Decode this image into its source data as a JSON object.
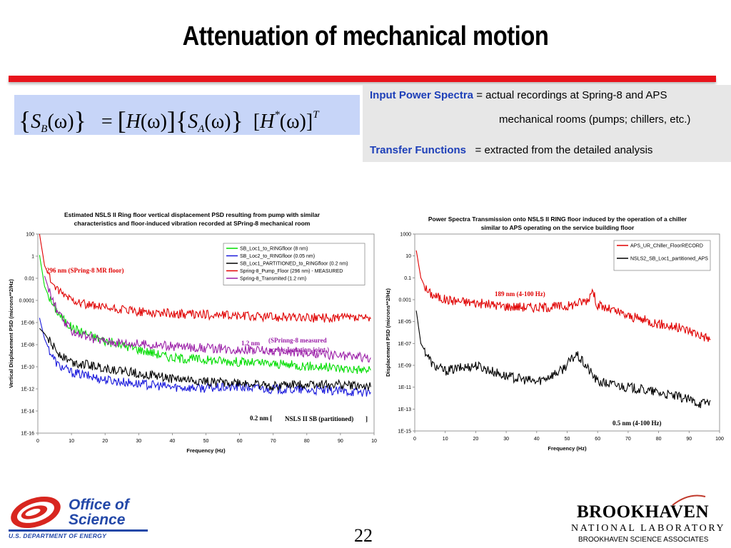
{
  "slide": {
    "title": "Attenuation of mechanical motion",
    "page_number": "22"
  },
  "equation": {
    "S": "S",
    "B": "B",
    "omega": "(ω)",
    "H": "H",
    "A": "A",
    "star": "*",
    "T": "T"
  },
  "spectra_box": {
    "term1": "Input Power Spectra",
    "def1a": " = actual recordings at Spring-8 and APS",
    "def1b": "mechanical rooms (pumps; chillers, etc.)",
    "term2": "Transfer Functions",
    "def2": " = extracted from the detailed analysis"
  },
  "chart_data": [
    {
      "type": "line",
      "title": "Estimated NSLS II Ring floor vertical displacement PSD resulting from pump with similar characteristics and floor-induced vibration recorded at SPring-8 mechanical room",
      "title_lines": [
        "Estimated NSLS II Ring floor vertical displacement PSD resulting from pump with similar",
        "characteristics and floor-induced vibration recorded at SPring-8 mechanical room"
      ],
      "xlabel": "Frequency (Hz)",
      "ylabel": "Vertical Displacement PSD (microns**2/Hz)",
      "xlim": [
        0,
        100
      ],
      "ylim_log10": [
        -16,
        3
      ],
      "y_scale": "log",
      "xticks": [
        "0",
        "10",
        "20",
        "30",
        "40",
        "50",
        "60",
        "70",
        "80",
        "90",
        "10"
      ],
      "yticks": [
        "100",
        "1",
        "0.01",
        "0.0001",
        "1E-06",
        "1E-08",
        "1E-10",
        "1E-12",
        "1E-14",
        "1E-16"
      ],
      "legend_position": "top-right",
      "series": [
        {
          "name": "SB_Loc1_to_RINGfloor (8 nm)",
          "color": "#00dd00",
          "points": [
            [
              0.5,
              1
            ],
            [
              2,
              -2
            ],
            [
              4,
              -3.5
            ],
            [
              6,
              -4.5
            ],
            [
              8,
              -5.3
            ],
            [
              10,
              -5.9
            ],
            [
              15,
              -6.6
            ],
            [
              20,
              -7.2
            ],
            [
              25,
              -7.6
            ],
            [
              30,
              -8
            ],
            [
              40,
              -8.8
            ],
            [
              50,
              -9
            ],
            [
              60,
              -9.2
            ],
            [
              70,
              -9.4
            ],
            [
              80,
              -9.6
            ],
            [
              90,
              -9.8
            ],
            [
              99,
              -10
            ]
          ]
        },
        {
          "name": "SB_Loc2_to_RINGfloor (0.05 nm)",
          "color": "#1a1adc",
          "points": [
            [
              0.5,
              -5
            ],
            [
              2,
              -7
            ],
            [
              4,
              -8.5
            ],
            [
              6,
              -9.5
            ],
            [
              10,
              -10.2
            ],
            [
              20,
              -10.9
            ],
            [
              30,
              -11.3
            ],
            [
              40,
              -11.6
            ],
            [
              50,
              -11.7
            ],
            [
              60,
              -11.6
            ],
            [
              70,
              -11.8
            ],
            [
              80,
              -11.9
            ],
            [
              90,
              -12
            ],
            [
              99,
              -12.1
            ]
          ]
        },
        {
          "name": "SB_Loc1_PARTITIONED_to_RINGfloor (0.2 nm)",
          "color": "#000000",
          "points": [
            [
              0.5,
              -6
            ],
            [
              2,
              -6.5
            ],
            [
              4,
              -7.5
            ],
            [
              6,
              -8.3
            ],
            [
              10,
              -9.2
            ],
            [
              20,
              -9.8
            ],
            [
              30,
              -10.3
            ],
            [
              40,
              -10.8
            ],
            [
              50,
              -11.1
            ],
            [
              60,
              -11.2
            ],
            [
              70,
              -11.5
            ],
            [
              80,
              -11.3
            ],
            [
              90,
              -11.4
            ],
            [
              99,
              -11.6
            ]
          ]
        },
        {
          "name": "Spring-8_Pump_Floor (296 nm) - MEASURED",
          "color": "#e00000",
          "points": [
            [
              0.5,
              3
            ],
            [
              2,
              0
            ],
            [
              4,
              -1.5
            ],
            [
              6,
              -2.5
            ],
            [
              10,
              -3.2
            ],
            [
              15,
              -3.8
            ],
            [
              20,
              -4.1
            ],
            [
              30,
              -4.4
            ],
            [
              40,
              -4.6
            ],
            [
              50,
              -4.7
            ],
            [
              60,
              -4.8
            ],
            [
              70,
              -4.9
            ],
            [
              80,
              -5
            ],
            [
              90,
              -5
            ],
            [
              99,
              -5.1
            ]
          ]
        },
        {
          "name": "Spring-8_Transmited (1.2 nm)",
          "color": "#9b1fa8",
          "points": [
            [
              2,
              -1
            ],
            [
              4,
              -3
            ],
            [
              6,
              -4.5
            ],
            [
              8,
              -5.5
            ],
            [
              10,
              -6.2
            ],
            [
              15,
              -6.9
            ],
            [
              20,
              -7.2
            ],
            [
              30,
              -7.5
            ],
            [
              40,
              -7.7
            ],
            [
              50,
              -7.9
            ],
            [
              60,
              -8
            ],
            [
              70,
              -8.2
            ],
            [
              80,
              -8.4
            ],
            [
              90,
              -8.6
            ],
            [
              99,
              -8.8
            ]
          ]
        }
      ],
      "annotations": [
        "296 nm (SPring-8 MR floor)",
        "1.2 nm",
        "(SPrinng-8 measured",
        "across Isolation joint )",
        "0.2 nm [",
        "NSLS II SB (partitioned)",
        "]"
      ]
    },
    {
      "type": "line",
      "title": "Power Spectra Transmission onto NSLS II RING floor induced by the operation of a chiller similar to APS operating on the service building floor",
      "title_lines": [
        "Power Spectra Transmission onto NSLS II  RING floor induced by the operation of a chiller",
        "similar to APS operating on the service building floor"
      ],
      "xlabel": "Frequency (Hz)",
      "ylabel": "Displacement PSD (microns**2/Hz)",
      "xlim": [
        0,
        100
      ],
      "ylim_log10": [
        -15,
        3
      ],
      "y_scale": "log",
      "xticks": [
        "0",
        "10",
        "20",
        "30",
        "40",
        "50",
        "60",
        "70",
        "80",
        "90",
        "100"
      ],
      "yticks": [
        "1000",
        "10",
        "0.1",
        "0.001",
        "1E-05",
        "1E-07",
        "1E-09",
        "1E-11",
        "1E-13",
        "1E-15"
      ],
      "legend_position": "top-right",
      "series": [
        {
          "name": "APS_UR_Chiller_FloorRECORD",
          "color": "#e00000",
          "points": [
            [
              0.5,
              1.5
            ],
            [
              2,
              -1
            ],
            [
              4,
              -2.2
            ],
            [
              6,
              -2.6
            ],
            [
              10,
              -3
            ],
            [
              20,
              -3.3
            ],
            [
              30,
              -3.6
            ],
            [
              40,
              -3.7
            ],
            [
              50,
              -3.6
            ],
            [
              57,
              -3
            ],
            [
              58,
              -2
            ],
            [
              60,
              -3.5
            ],
            [
              70,
              -4.5
            ],
            [
              80,
              -5.2
            ],
            [
              90,
              -5.8
            ],
            [
              97,
              -6.6
            ]
          ]
        },
        {
          "name": "NSLS2_SB_Loc1_partitioned_APS",
          "color": "#000000",
          "points": [
            [
              0.5,
              -4
            ],
            [
              2,
              -7
            ],
            [
              4,
              -8
            ],
            [
              6,
              -9
            ],
            [
              10,
              -9.5
            ],
            [
              20,
              -9
            ],
            [
              30,
              -10
            ],
            [
              40,
              -10.5
            ],
            [
              48,
              -9.5
            ],
            [
              53,
              -8
            ],
            [
              56,
              -9
            ],
            [
              60,
              -10.5
            ],
            [
              70,
              -11
            ],
            [
              80,
              -11.5
            ],
            [
              88,
              -12
            ],
            [
              94,
              -12.5
            ],
            [
              97,
              -12.2
            ]
          ]
        }
      ],
      "annotations": [
        "189 nm (4-100 Hz)",
        "0.5 nm (4-100 Hz)"
      ]
    }
  ],
  "logos": {
    "office_line1": "Office of",
    "office_line2": "Science",
    "doe": "U.S. DEPARTMENT OF ENERGY",
    "bnl_name": "BROOKHAVEN",
    "bnl_lab": "NATIONAL LABORATORY",
    "bnl_assoc": "BROOKHAVEN SCIENCE ASSOCIATES",
    "colors": {
      "accent_red": "#e8141c",
      "doe_blue": "#2348a8",
      "eq_box": "#c7d5f8",
      "term_blue": "#1d3fb8"
    }
  }
}
